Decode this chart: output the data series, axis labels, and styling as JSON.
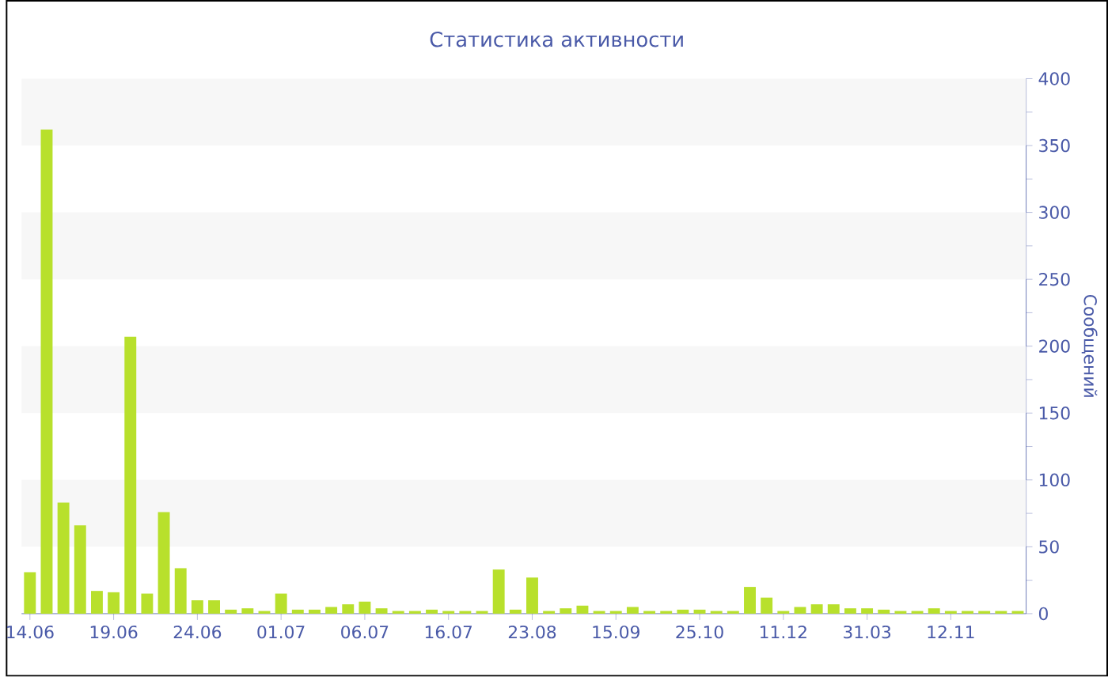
{
  "chart_data": {
    "type": "bar",
    "title": "Статистика активности",
    "ylabel": "Сообщений",
    "categories": [
      "14.06",
      null,
      null,
      null,
      null,
      "19.06",
      null,
      null,
      null,
      null,
      "24.06",
      null,
      null,
      null,
      null,
      "01.07",
      null,
      null,
      null,
      null,
      "06.07",
      null,
      null,
      null,
      null,
      "16.07",
      null,
      null,
      null,
      null,
      "23.08",
      null,
      null,
      null,
      null,
      "15.09",
      null,
      null,
      null,
      null,
      "25.10",
      null,
      null,
      null,
      null,
      "11.12",
      null,
      null,
      null,
      null,
      "31.03",
      null,
      null,
      null,
      null,
      "12.11",
      null,
      null,
      null,
      null
    ],
    "values": [
      31,
      362,
      83,
      66,
      17,
      16,
      207,
      15,
      76,
      34,
      10,
      10,
      3,
      4,
      2,
      15,
      3,
      3,
      5,
      7,
      9,
      4,
      2,
      2,
      3,
      2,
      2,
      2,
      33,
      3,
      27,
      2,
      4,
      6,
      2,
      2,
      5,
      2,
      2,
      3,
      3,
      2,
      2,
      20,
      12,
      2,
      5,
      7,
      7,
      4,
      4,
      3,
      2,
      2,
      4,
      2,
      2,
      2,
      2,
      2
    ],
    "color": "#b8e02c",
    "ylim": [
      0,
      400
    ],
    "yticks": [
      0,
      {
        "value": 25,
        "label": null
      },
      50,
      {
        "value": 75,
        "label": null
      },
      100,
      {
        "value": 125,
        "label": null
      },
      150,
      {
        "value": 175,
        "label": null
      },
      200,
      {
        "value": 225,
        "label": null
      },
      250,
      {
        "value": 275,
        "label": null
      },
      300,
      {
        "value": 325,
        "label": null
      },
      350,
      {
        "value": 375,
        "label": null
      },
      400
    ],
    "bands": [
      {
        "axis": "y",
        "from": 50,
        "to": 100,
        "color": "#f7f7f7"
      },
      {
        "axis": "y",
        "from": 150,
        "to": 200,
        "color": "#f7f7f7"
      },
      {
        "axis": "y",
        "from": 250,
        "to": 300,
        "color": "#f7f7f7"
      },
      {
        "axis": "y",
        "from": 350,
        "to": 400,
        "color": "#f7f7f7"
      }
    ]
  }
}
